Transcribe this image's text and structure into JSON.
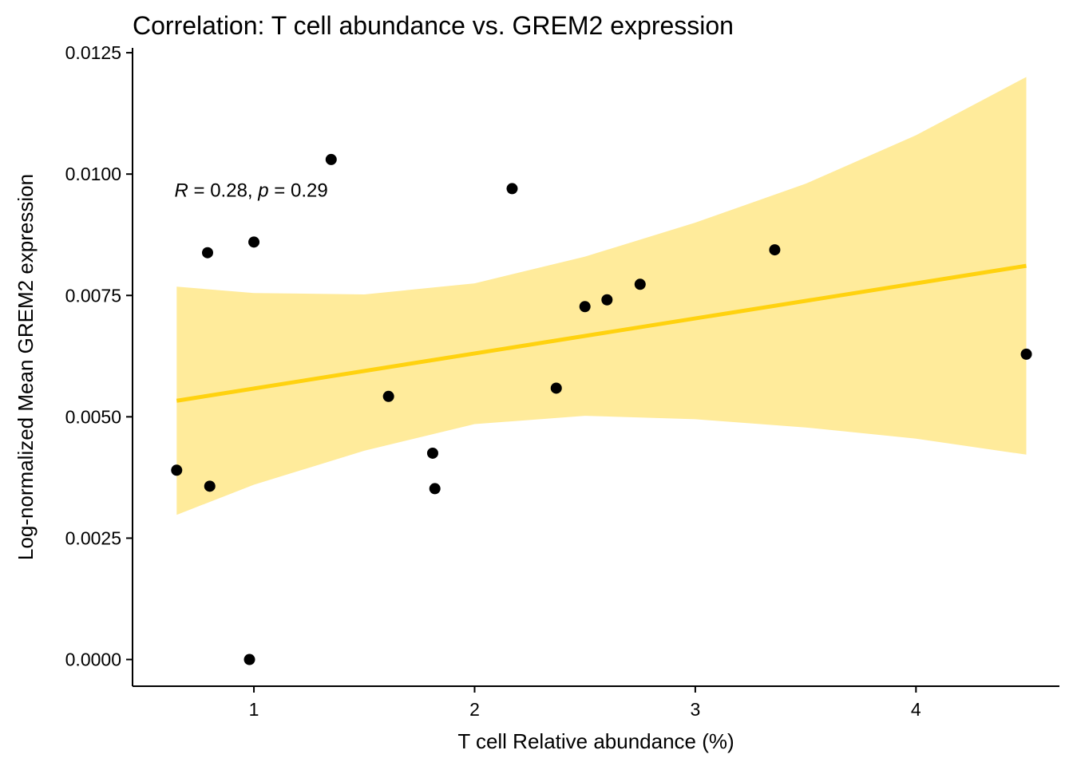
{
  "chart_data": {
    "type": "scatter",
    "title": "Correlation: T cell abundance vs. GREM2 expression",
    "xlabel": "T cell Relative abundance (%)",
    "ylabel": "Log-normalized Mean GREM2 expression",
    "xlim": [
      0.45,
      4.65
    ],
    "ylim": [
      -0.00055,
      0.0126
    ],
    "x_ticks": [
      1,
      2,
      3,
      4
    ],
    "x_tick_labels": [
      "1",
      "2",
      "3",
      "4"
    ],
    "y_ticks": [
      0,
      0.0025,
      0.005,
      0.0075,
      0.01,
      0.0125
    ],
    "y_tick_labels": [
      "0.0000",
      "0.0025",
      "0.0050",
      "0.0075",
      "0.0100",
      "0.0125"
    ],
    "grid": false,
    "legend": "none",
    "points": [
      {
        "x": 0.65,
        "y": 0.0039
      },
      {
        "x": 0.79,
        "y": 0.00838
      },
      {
        "x": 0.8,
        "y": 0.00357
      },
      {
        "x": 0.98,
        "y": 0.0
      },
      {
        "x": 1.0,
        "y": 0.0086
      },
      {
        "x": 1.35,
        "y": 0.0103
      },
      {
        "x": 1.61,
        "y": 0.00542
      },
      {
        "x": 1.81,
        "y": 0.00425
      },
      {
        "x": 1.82,
        "y": 0.00352
      },
      {
        "x": 2.17,
        "y": 0.0097
      },
      {
        "x": 2.37,
        "y": 0.00559
      },
      {
        "x": 2.5,
        "y": 0.00727
      },
      {
        "x": 2.6,
        "y": 0.00741
      },
      {
        "x": 2.75,
        "y": 0.00773
      },
      {
        "x": 3.36,
        "y": 0.00844
      },
      {
        "x": 4.5,
        "y": 0.00629
      }
    ],
    "regression": {
      "x_start": 0.65,
      "y_start": 0.00533,
      "x_end": 4.5,
      "y_end": 0.00811,
      "ci_band": {
        "x": [
          0.65,
          1.0,
          1.5,
          2.0,
          2.5,
          3.0,
          3.5,
          4.0,
          4.5
        ],
        "lower": [
          0.00298,
          0.0036,
          0.0043,
          0.00485,
          0.00502,
          0.00495,
          0.00478,
          0.00455,
          0.00422
        ],
        "upper": [
          0.00768,
          0.00755,
          0.00752,
          0.00775,
          0.0083,
          0.009,
          0.0098,
          0.0108,
          0.012
        ]
      }
    },
    "annotation": {
      "x": 0.64,
      "y": 0.0097,
      "r_symbol": "R",
      "r_text": " = 0.28, ",
      "p_symbol": "p",
      "p_text": " = 0.29"
    },
    "colors": {
      "points": "#000000",
      "line": "#FFD20F",
      "band": "#FFE78A",
      "axis": "#000000"
    }
  }
}
